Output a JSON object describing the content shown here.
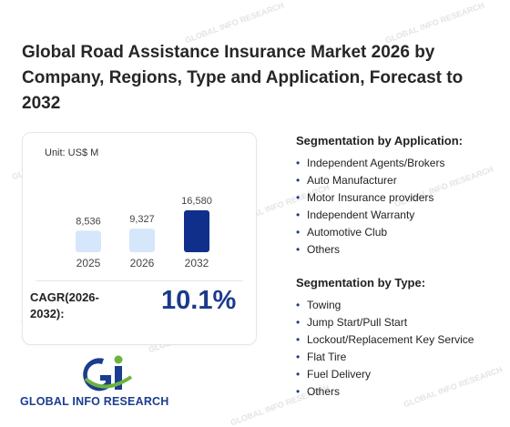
{
  "title": "Global Road Assistance Insurance Market 2026 by Company, Regions, Type and Application, Forecast to 2032",
  "chart": {
    "unit": "Unit: US$ M",
    "cagr_label": "CAGR(2026-2032):",
    "cagr_value": "10.1%"
  },
  "chart_data": {
    "type": "bar",
    "categories": [
      "2025",
      "2026",
      "2032"
    ],
    "values": [
      8536,
      9327,
      16580
    ],
    "value_labels": [
      "8,536",
      "9,327",
      "16,580"
    ],
    "colors": [
      "#d6e6fb",
      "#d6e6fb",
      "#0f2f8a"
    ]
  },
  "application": {
    "heading": "Segmentation by Application:",
    "items": [
      "Independent Agents/Brokers",
      "Auto Manufacturer",
      "Motor Insurance providers",
      "Independent Warranty",
      "Automotive Club",
      "Others"
    ]
  },
  "type": {
    "heading": "Segmentation by Type:",
    "items": [
      "Towing",
      "Jump Start/Pull Start",
      "Lockout/Replacement Key Service",
      "Flat Tire",
      "Fuel Delivery",
      "Others"
    ]
  },
  "logo": {
    "text": "GLOBAL INFO RESEARCH",
    "accent": "#1b3d8f",
    "green": "#6db33f"
  }
}
